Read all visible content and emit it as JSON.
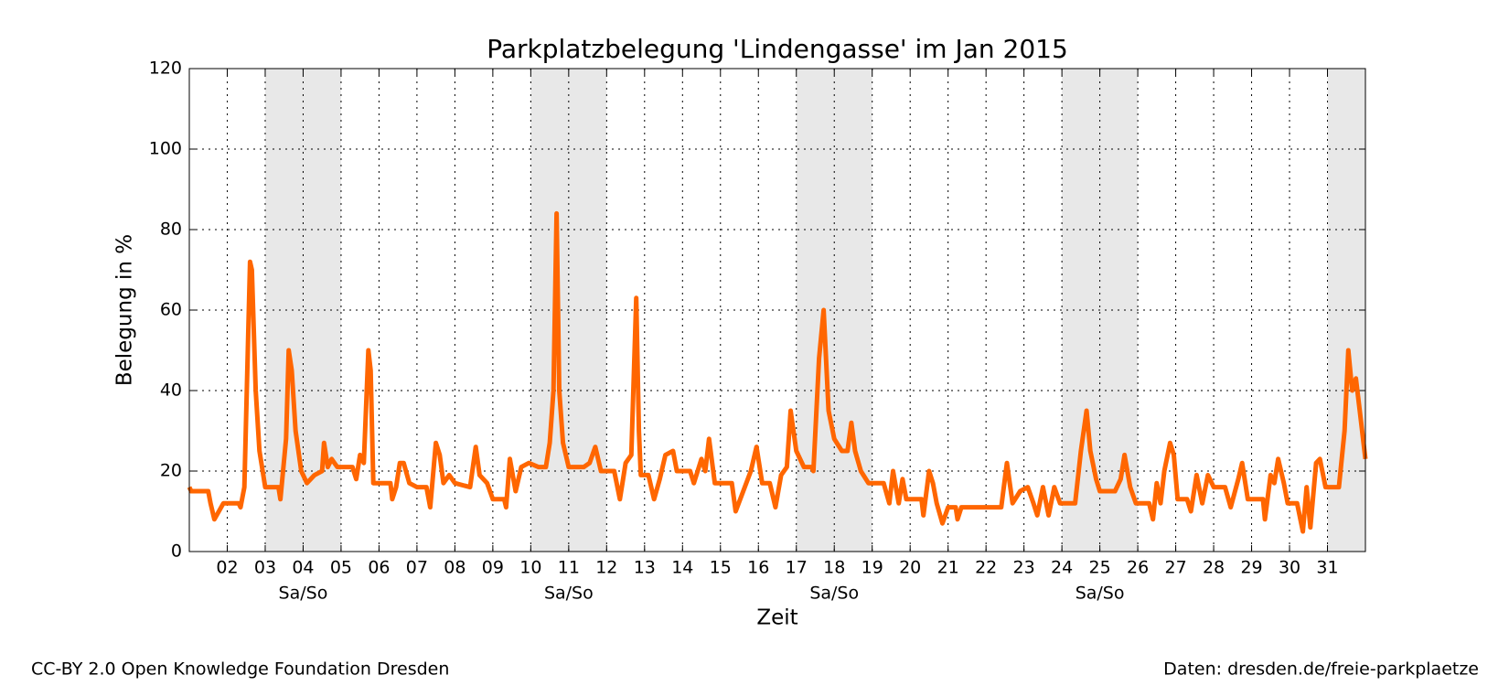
{
  "chart_data": {
    "type": "line",
    "title": "Parkplatzbelegung 'Lindengasse' im Jan 2015",
    "x_label": "Zeit",
    "y_label": "Belegung in %",
    "footer_left": "CC-BY 2.0 Open Knowledge Foundation Dresden",
    "footer_right": "Daten: dresden.de/freie-parkplaetze",
    "color": "#ff6600",
    "grid": true,
    "xlim": [
      1,
      32
    ],
    "ylim": [
      0,
      120
    ],
    "yticks": [
      0,
      20,
      40,
      60,
      80,
      100,
      120
    ],
    "xticks": [
      {
        "value": 2,
        "label": "02"
      },
      {
        "value": 3,
        "label": "03"
      },
      {
        "value": 4,
        "label": "04"
      },
      {
        "value": 5,
        "label": "05"
      },
      {
        "value": 6,
        "label": "06"
      },
      {
        "value": 7,
        "label": "07"
      },
      {
        "value": 8,
        "label": "08"
      },
      {
        "value": 9,
        "label": "09"
      },
      10,
      11,
      12,
      13,
      14,
      15,
      16,
      17,
      18,
      19,
      20,
      21,
      22,
      23,
      24,
      25,
      26,
      27,
      28,
      29,
      30,
      31
    ],
    "weekends": [
      {
        "range": [
          3,
          5
        ],
        "label": "Sa/So"
      },
      {
        "range": [
          10,
          12
        ],
        "label": "Sa/So"
      },
      {
        "range": [
          17,
          19
        ],
        "label": "Sa/So"
      },
      {
        "range": [
          24,
          26
        ],
        "label": "Sa/So"
      },
      {
        "range": [
          31,
          32
        ]
      }
    ],
    "x": [
      1.0,
      1.05,
      1.5,
      1.56,
      1.66,
      1.9,
      2.3,
      2.35,
      2.45,
      2.6,
      2.65,
      2.75,
      2.85,
      3.0,
      3.35,
      3.4,
      3.55,
      3.62,
      3.7,
      3.8,
      3.95,
      4.1,
      4.3,
      4.5,
      4.55,
      4.65,
      4.75,
      4.9,
      5.3,
      5.4,
      5.5,
      5.6,
      5.72,
      5.78,
      5.85,
      6.3,
      6.35,
      6.45,
      6.55,
      6.65,
      6.8,
      7.0,
      7.25,
      7.35,
      7.5,
      7.6,
      7.7,
      7.85,
      8.0,
      8.4,
      8.55,
      8.65,
      8.85,
      9.0,
      9.3,
      9.35,
      9.45,
      9.6,
      9.75,
      9.95,
      10.2,
      10.4,
      10.5,
      10.6,
      10.68,
      10.75,
      10.85,
      11.0,
      11.4,
      11.55,
      11.7,
      11.85,
      12.2,
      12.35,
      12.5,
      12.65,
      12.78,
      12.85,
      12.9,
      13.1,
      13.25,
      13.4,
      13.55,
      13.75,
      13.85,
      14.2,
      14.3,
      14.5,
      14.6,
      14.7,
      14.85,
      15.3,
      15.4,
      15.6,
      15.8,
      15.95,
      16.1,
      16.3,
      16.45,
      16.6,
      16.75,
      16.85,
      17.0,
      17.2,
      17.4,
      17.45,
      17.6,
      17.72,
      17.85,
      18.0,
      18.2,
      18.35,
      18.45,
      18.55,
      18.7,
      18.9,
      19.3,
      19.45,
      19.55,
      19.7,
      19.8,
      19.9,
      20.3,
      20.35,
      20.5,
      20.6,
      20.7,
      20.85,
      21.0,
      21.2,
      21.25,
      21.35,
      22.4,
      22.55,
      22.7,
      22.9,
      23.1,
      23.25,
      23.35,
      23.5,
      23.65,
      23.8,
      23.95,
      24.35,
      24.5,
      24.65,
      24.75,
      24.9,
      25.0,
      25.4,
      25.55,
      25.65,
      25.8,
      25.95,
      26.3,
      26.4,
      26.5,
      26.6,
      26.7,
      26.85,
      26.95,
      27.05,
      27.3,
      27.4,
      27.55,
      27.7,
      27.85,
      28.0,
      28.3,
      28.45,
      28.65,
      28.75,
      28.9,
      29.3,
      29.35,
      29.5,
      29.6,
      29.7,
      29.85,
      29.95,
      30.2,
      30.35,
      30.45,
      30.55,
      30.7,
      30.8,
      30.95,
      31.3,
      31.45,
      31.55,
      31.65,
      31.75,
      31.85,
      32.0
    ],
    "values": [
      16,
      15,
      15,
      12,
      8,
      12,
      12,
      11,
      16,
      72,
      70,
      40,
      25,
      16,
      16,
      13,
      28,
      50,
      45,
      30,
      20,
      17,
      19,
      20,
      27,
      21,
      23,
      21,
      21,
      18,
      24,
      22,
      50,
      45,
      17,
      17,
      13,
      16,
      22,
      22,
      17,
      16,
      16,
      11,
      27,
      24,
      17,
      19,
      17,
      16,
      26,
      19,
      17,
      13,
      13,
      11,
      23,
      15,
      21,
      22,
      21,
      21,
      27,
      40,
      84,
      40,
      27,
      21,
      21,
      22,
      26,
      20,
      20,
      13,
      22,
      24,
      63,
      30,
      19,
      19,
      13,
      18,
      24,
      25,
      20,
      20,
      17,
      23,
      20,
      28,
      17,
      17,
      10,
      15,
      20,
      26,
      17,
      17,
      11,
      19,
      21,
      35,
      25,
      21,
      21,
      20,
      48,
      60,
      35,
      28,
      25,
      25,
      32,
      25,
      20,
      17,
      17,
      12,
      20,
      12,
      18,
      13,
      13,
      9,
      20,
      17,
      12,
      7,
      11,
      11,
      8,
      11,
      11,
      22,
      12,
      15,
      16,
      12,
      9,
      16,
      9,
      16,
      12,
      12,
      25,
      35,
      25,
      18,
      15,
      15,
      18,
      24,
      16,
      12,
      12,
      8,
      17,
      12,
      20,
      27,
      24,
      13,
      13,
      10,
      19,
      12,
      19,
      16,
      16,
      11,
      18,
      22,
      13,
      13,
      8,
      19,
      17,
      23,
      17,
      12,
      12,
      5,
      16,
      6,
      22,
      23,
      16,
      16,
      30,
      50,
      40,
      43,
      35,
      23
    ]
  }
}
